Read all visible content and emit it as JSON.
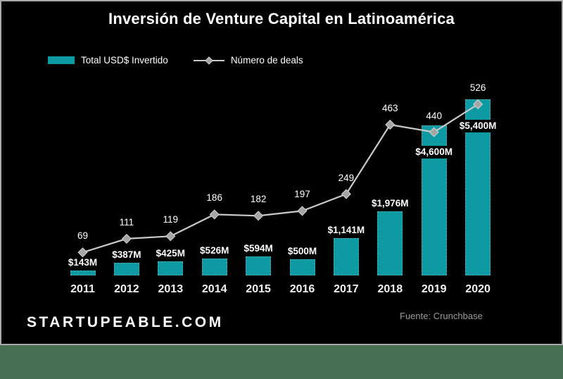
{
  "page": {
    "background_strip_color": "#487052"
  },
  "panel": {
    "background": "#000000",
    "border_color": "#a9a9a9"
  },
  "legend": [
    {
      "label": "Total USD$ Invertido",
      "swatch": "bar",
      "color": "#0d9aa2"
    },
    {
      "label": "Número de deals",
      "swatch": "line-diamond",
      "color": "#c9c9c9"
    }
  ],
  "footer": {
    "brand": "STARTUPEABLE.COM",
    "source": "Fuente: Crunchbase"
  },
  "chart_data": {
    "type": "bar+line combo",
    "title": "Inversión de Venture Capital en Latinoamérica",
    "categories": [
      "2011",
      "2012",
      "2013",
      "2014",
      "2015",
      "2016",
      "2017",
      "2018",
      "2019",
      "2020"
    ],
    "series": [
      {
        "name": "Total USD$ Invertido",
        "type": "bar",
        "unit": "USD millions",
        "color": "#0d9aa2",
        "values": [
          143,
          387,
          425,
          526,
          594,
          500,
          1141,
          1976,
          4600,
          5400
        ],
        "labels": [
          "$143M",
          "$387M",
          "$425M",
          "$526M",
          "$594M",
          "$500M",
          "$1,141M",
          "$1,976M",
          "$4,600M",
          "$5,400M"
        ]
      },
      {
        "name": "Número de deals",
        "type": "line",
        "marker": "diamond",
        "color": "#c9c9c9",
        "marker_fill": "#a5a5a5",
        "marker_stroke": "#d4d4d4",
        "values": [
          69,
          111,
          119,
          186,
          182,
          197,
          249,
          463,
          440,
          526
        ],
        "labels": [
          "69",
          "111",
          "119",
          "186",
          "182",
          "197",
          "249",
          "463",
          "440",
          "526"
        ]
      }
    ],
    "legend_position": "top-left",
    "grid": false,
    "value_axes_hidden": true,
    "data_labels_shown": true
  }
}
